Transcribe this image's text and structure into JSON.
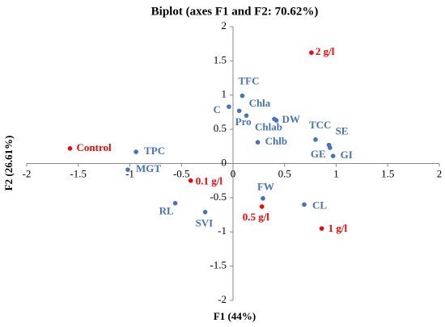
{
  "chart_data": {
    "type": "scatter",
    "title": "Biplot (axes F1 and F2: 70.62%)",
    "x_label": "F1 (44%)",
    "y_label": "F2 (26.61%)",
    "xlim": [
      -2,
      2
    ],
    "ylim": [
      -2,
      2
    ],
    "xticks": [
      -2,
      -1.5,
      -1,
      -0.5,
      0,
      0.5,
      1,
      1.5,
      2
    ],
    "yticks": [
      -2,
      -1.5,
      -1,
      -0.5,
      0,
      0.5,
      1,
      1.5,
      2
    ],
    "grid": false,
    "series": [
      {
        "color": "#4472c4",
        "labels": [
          "TFC",
          "C",
          "Pro",
          "Chla",
          "Chlab",
          "DW",
          "Chlb",
          "TCC",
          "SE",
          "GE",
          "GI",
          "TPC",
          "MGT",
          "FW",
          "CL",
          "RL",
          "SVI"
        ],
        "x": [
          0.09,
          -0.04,
          0.06,
          0.13,
          0.4,
          0.42,
          0.24,
          0.8,
          0.93,
          0.94,
          0.97,
          -0.94,
          -1.02,
          0.29,
          0.69,
          -0.56,
          -0.27
        ],
        "values": [
          0.99,
          0.83,
          0.77,
          0.7,
          0.65,
          0.63,
          0.31,
          0.35,
          0.27,
          0.23,
          0.11,
          0.17,
          -0.09,
          -0.51,
          -0.6,
          -0.58,
          -0.71
        ]
      },
      {
        "color": "#ff0000",
        "labels": [
          "2 g/l",
          "Control",
          "0.1 g/l",
          "0.5 g/l",
          "1 g/l"
        ],
        "x": [
          0.76,
          -1.58,
          -0.41,
          0.28,
          0.86
        ],
        "values": [
          1.62,
          0.22,
          -0.25,
          -0.63,
          -0.95
        ]
      }
    ]
  }
}
